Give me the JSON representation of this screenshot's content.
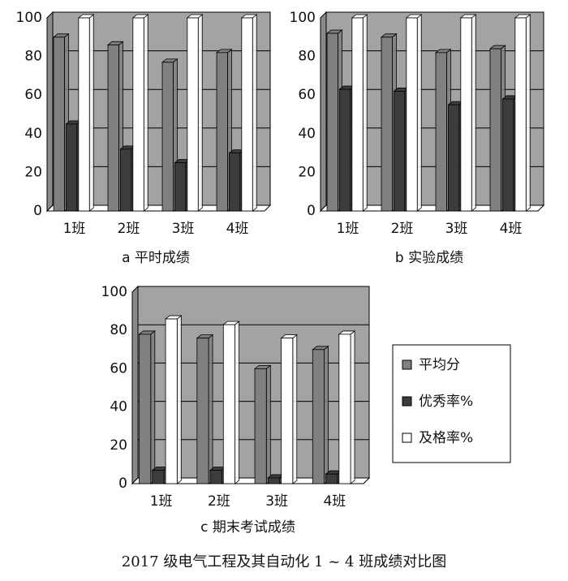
{
  "chart_data": [
    {
      "type": "bar",
      "title": "a  平时成绩",
      "categories": [
        "1班",
        "2班",
        "3班",
        "4班"
      ],
      "series": [
        {
          "name": "平均分",
          "color": "#808080",
          "values": [
            90,
            86,
            77,
            82
          ]
        },
        {
          "name": "优秀率%",
          "color": "#3c3c3c",
          "values": [
            45,
            32,
            25,
            30
          ]
        },
        {
          "name": "及格率%",
          "color": "#ffffff",
          "values": [
            100,
            100,
            100,
            100
          ]
        }
      ],
      "ylim": [
        0,
        100
      ],
      "yticks": [
        0,
        20,
        40,
        60,
        80,
        100
      ],
      "grid": true
    },
    {
      "type": "bar",
      "title": "b  实验成绩",
      "categories": [
        "1班",
        "2班",
        "3班",
        "4班"
      ],
      "series": [
        {
          "name": "平均分",
          "color": "#808080",
          "values": [
            92,
            90,
            82,
            84
          ]
        },
        {
          "name": "优秀率%",
          "color": "#3c3c3c",
          "values": [
            63,
            62,
            55,
            58
          ]
        },
        {
          "name": "及格率%",
          "color": "#ffffff",
          "values": [
            100,
            100,
            100,
            100
          ]
        }
      ],
      "ylim": [
        0,
        100
      ],
      "yticks": [
        0,
        20,
        40,
        60,
        80,
        100
      ],
      "grid": true
    },
    {
      "type": "bar",
      "title": "c  期末考试成绩",
      "categories": [
        "1班",
        "2班",
        "3班",
        "4班"
      ],
      "series": [
        {
          "name": "平均分",
          "color": "#808080",
          "values": [
            78,
            76,
            60,
            70
          ]
        },
        {
          "name": "优秀率%",
          "color": "#3c3c3c",
          "values": [
            7,
            7,
            3,
            5
          ]
        },
        {
          "name": "及格率%",
          "color": "#ffffff",
          "values": [
            86,
            83,
            76,
            78
          ]
        }
      ],
      "ylim": [
        0,
        100
      ],
      "yticks": [
        0,
        20,
        40,
        60,
        80,
        100
      ],
      "grid": true,
      "legend": "right"
    }
  ],
  "caption": "2017 级电气工程及其自动化 1 ~ 4 班成绩对比图"
}
